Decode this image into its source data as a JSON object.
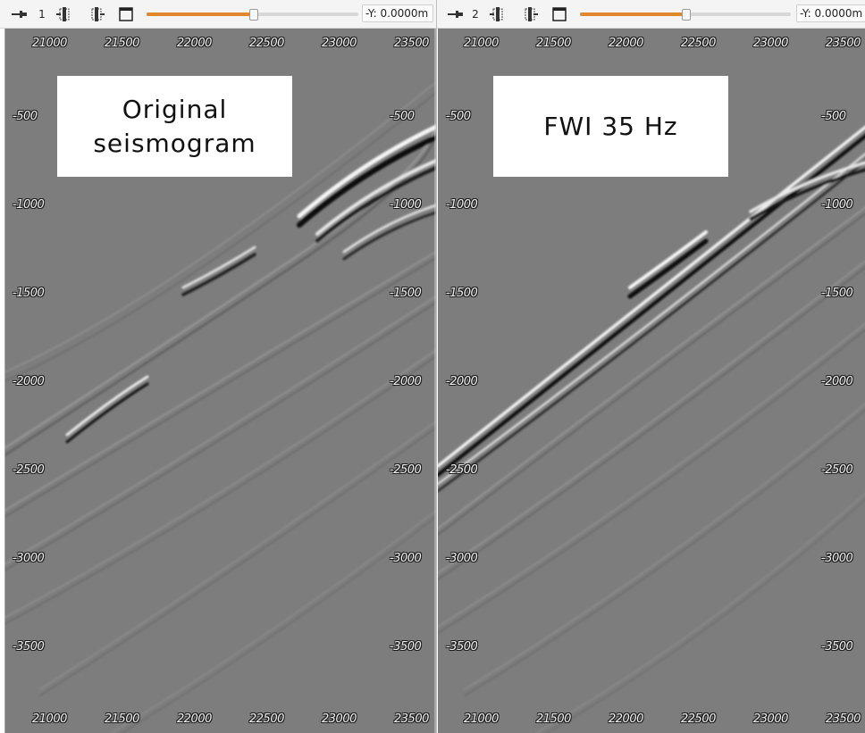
{
  "panels": [
    {
      "view_number": "1",
      "coordinate_readout": "-Y: 0.0000m",
      "slider_value_fraction": 0.5,
      "overlay_text": "Original seismogram",
      "x_ticks": [
        "21000",
        "21500",
        "22000",
        "22500",
        "23000",
        "23500"
      ],
      "y_ticks": [
        "-500",
        "-1000",
        "-1500",
        "-2000",
        "-2500",
        "-3000",
        "-3500"
      ]
    },
    {
      "view_number": "2",
      "coordinate_readout": "-Y: 0.0000m",
      "slider_value_fraction": 0.5,
      "overlay_text": "FWI 35 Hz",
      "x_ticks": [
        "21000",
        "21500",
        "22000",
        "22500",
        "23000",
        "23500"
      ],
      "y_ticks": [
        "-500",
        "-1000",
        "-1500",
        "-2000",
        "-2500",
        "-3000",
        "-3500"
      ]
    }
  ],
  "icons": [
    "pin-icon",
    "slice-backward-icon",
    "slice-forward-icon",
    "window-icon"
  ],
  "colors": {
    "slider_accent": "#e2882c",
    "background_gray": "#7d7d7d"
  }
}
